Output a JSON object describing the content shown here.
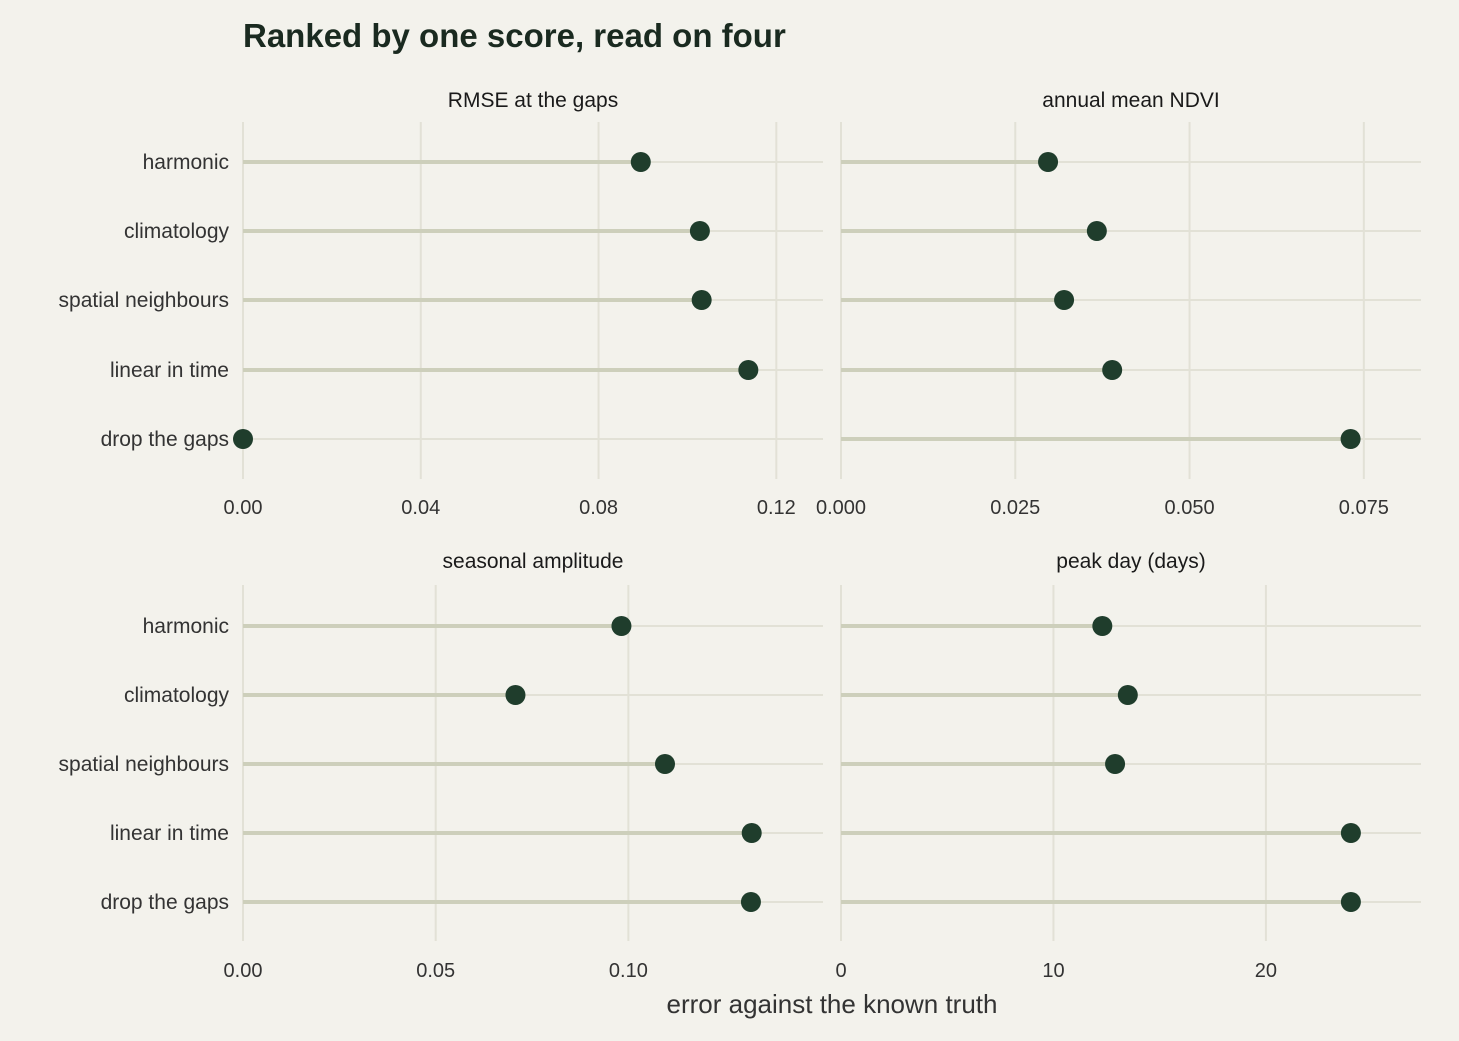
{
  "chart_data": {
    "type": "lollipop",
    "title": "Ranked by one score, read on four",
    "xlabel": "error against the known truth",
    "categories": [
      "harmonic",
      "climatology",
      "spatial neighbours",
      "linear in time",
      "drop the gaps"
    ],
    "colors": {
      "background": "#f3f2ec",
      "grid": "#e2e1d6",
      "stem": "#cdcfbb",
      "point": "#1f3d2c",
      "text": "#333333",
      "title": "#1a2a20"
    },
    "panels": [
      {
        "title": "RMSE at the gaps",
        "values": [
          0.0895,
          0.1028,
          0.1032,
          0.1137,
          0.0
        ],
        "xlim": [
          0,
          0.1305
        ],
        "ticks": [
          0.0,
          0.04,
          0.08,
          0.12
        ],
        "tick_labels": [
          "0.00",
          "0.04",
          "0.08",
          "0.12"
        ]
      },
      {
        "title": "annual mean NDVI",
        "values": [
          0.0297,
          0.0367,
          0.032,
          0.0389,
          0.0731
        ],
        "xlim": [
          0,
          0.0832
        ],
        "ticks": [
          0.0,
          0.025,
          0.05,
          0.075
        ],
        "tick_labels": [
          "0.000",
          "0.025",
          "0.050",
          "0.075"
        ]
      },
      {
        "title": "seasonal amplitude",
        "values": [
          0.0982,
          0.0707,
          0.1095,
          0.132,
          0.1318
        ],
        "xlim": [
          0,
          0.1505
        ],
        "ticks": [
          0.0,
          0.05,
          0.1
        ],
        "tick_labels": [
          "0.00",
          "0.05",
          "0.10"
        ]
      },
      {
        "title": "peak day (days)",
        "values": [
          12.3,
          13.5,
          12.9,
          24.0,
          24.0
        ],
        "xlim": [
          0,
          27.3
        ],
        "ticks": [
          0,
          10,
          20
        ],
        "tick_labels": [
          "0",
          "10",
          "20"
        ]
      }
    ]
  }
}
